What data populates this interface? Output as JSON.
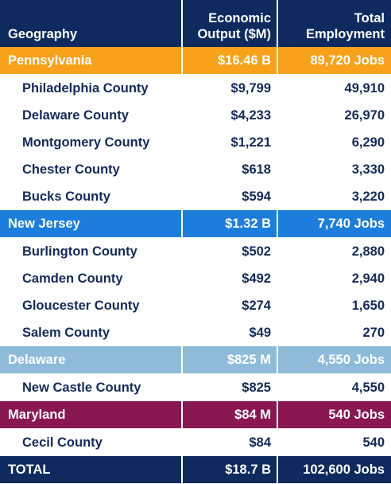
{
  "table": {
    "header": [
      "Geography",
      "Economic Output ($M)",
      "Total Employment"
    ],
    "regions": [
      {
        "name": "Pennsylvania",
        "output": "$16.46 B",
        "employment": "89,720 Jobs",
        "color": "#f9a11b",
        "counties": [
          [
            "Philadelphia County",
            "$9,799",
            "49,910"
          ],
          [
            "Delaware County",
            "$4,233",
            "26,970"
          ],
          [
            "Montgomery County",
            "$1,221",
            "6,290"
          ],
          [
            "Chester County",
            "$618",
            "3,330"
          ],
          [
            "Bucks County",
            "$594",
            "3,220"
          ]
        ]
      },
      {
        "name": "New Jersey",
        "output": "$1.32 B",
        "employment": "7,740 Jobs",
        "color": "#1d7ddd",
        "counties": [
          [
            "Burlington County",
            "$502",
            "2,880"
          ],
          [
            "Camden County",
            "$492",
            "2,940"
          ],
          [
            "Gloucester County",
            "$274",
            "1,650"
          ],
          [
            "Salem County",
            "$49",
            "270"
          ]
        ]
      },
      {
        "name": "Delaware",
        "output": "$825 M",
        "employment": "4,550 Jobs",
        "color": "#8dbbd9",
        "counties": [
          [
            "New Castle County",
            "$825",
            "4,550"
          ]
        ]
      },
      {
        "name": "Maryland",
        "output": "$84 M",
        "employment": "540 Jobs",
        "color": "#8b1752",
        "counties": [
          [
            "Cecil County",
            "$84",
            "540"
          ]
        ]
      }
    ],
    "total": [
      "TOTAL",
      "$18.7 B",
      "102,600 Jobs"
    ]
  }
}
